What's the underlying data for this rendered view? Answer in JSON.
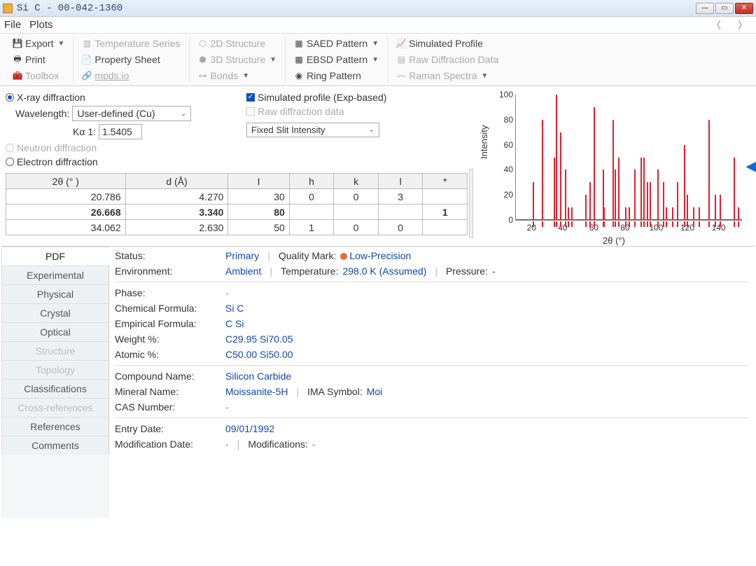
{
  "window": {
    "title": "Si C - 00-042-1360"
  },
  "menu": {
    "file": "File",
    "plots": "Plots"
  },
  "toolbar": {
    "export": "Export",
    "print": "Print",
    "toolbox": "Toolbox",
    "temp_series": "Temperature Series",
    "prop_sheet": "Property Sheet",
    "mpds": "mpds.io",
    "struct2d": "2D Structure",
    "struct3d": "3D Structure",
    "bonds": "Bonds",
    "saed": "SAED Pattern",
    "ebsd": "EBSD Pattern",
    "ring": "Ring Pattern",
    "sim_profile": "Simulated Profile",
    "raw_diff": "Raw Diffraction Data",
    "raman": "Raman Spectra"
  },
  "opts": {
    "xray": "X-ray diffraction",
    "neutron": "Neutron diffraction",
    "electron": "Electron diffraction",
    "wavelength_lbl": "Wavelength:",
    "wavelength_sel": "User-defined (Cu)",
    "ka1_lbl": "Kα 1:",
    "ka1_val": "1.5405",
    "sim_profile": "Simulated profile (Exp-based)",
    "raw_data": "Raw diffraction data",
    "intensity_mode": "Fixed Slit Intensity"
  },
  "table": {
    "headers": [
      "2θ (° )",
      "d (Å)",
      "I",
      "h",
      "k",
      "l",
      "*"
    ],
    "rows": [
      {
        "tt": "20.786",
        "d": "4.270",
        "I": "30",
        "h": "0",
        "k": "0",
        "l": "3",
        "s": ""
      },
      {
        "tt": "26.668",
        "d": "3.340",
        "I": "80",
        "h": "",
        "k": "",
        "l": "",
        "s": "1",
        "hl": true
      },
      {
        "tt": "34.062",
        "d": "2.630",
        "I": "50",
        "h": "1",
        "k": "0",
        "l": "0",
        "s": ""
      }
    ]
  },
  "chart": {
    "ylabel": "Intensity",
    "xlabel": "2θ (°)",
    "ylim": [
      0,
      100
    ],
    "ytick_step": 20,
    "xlim": [
      10,
      155
    ],
    "xticks": [
      20,
      40,
      60,
      80,
      100,
      120,
      140
    ],
    "bar_color": "#e02030",
    "axis_color": "#888888",
    "peaks": [
      [
        20.8,
        30
      ],
      [
        26.7,
        80
      ],
      [
        34.1,
        50
      ],
      [
        35.6,
        100
      ],
      [
        38.1,
        70
      ],
      [
        41.4,
        40
      ],
      [
        43.3,
        10
      ],
      [
        45.3,
        10
      ],
      [
        54.6,
        20
      ],
      [
        57.2,
        30
      ],
      [
        60.0,
        90
      ],
      [
        65.6,
        40
      ],
      [
        66.2,
        10
      ],
      [
        71.8,
        80
      ],
      [
        73.4,
        40
      ],
      [
        75.5,
        50
      ],
      [
        79.9,
        10
      ],
      [
        82.1,
        10
      ],
      [
        85.9,
        40
      ],
      [
        89.9,
        50
      ],
      [
        91.7,
        50
      ],
      [
        94.0,
        30
      ],
      [
        95.7,
        30
      ],
      [
        100.7,
        40
      ],
      [
        104.3,
        30
      ],
      [
        106.1,
        10
      ],
      [
        110.0,
        10
      ],
      [
        113.4,
        30
      ],
      [
        117.9,
        60
      ],
      [
        119.7,
        20
      ],
      [
        123.8,
        10
      ],
      [
        127.3,
        10
      ],
      [
        133.5,
        80
      ],
      [
        137.4,
        20
      ],
      [
        140.8,
        20
      ],
      [
        149.7,
        50
      ],
      [
        152.1,
        10
      ]
    ]
  },
  "tabs": {
    "pdf": "PDF",
    "exp": "Experimental",
    "phys": "Physical",
    "cryst": "Crystal",
    "opt": "Optical",
    "struct": "Structure",
    "topo": "Topology",
    "class": "Classifications",
    "xref": "Cross-references",
    "refs": "References",
    "comm": "Comments"
  },
  "detail": {
    "status_lbl": "Status:",
    "status": "Primary",
    "qmark_lbl": "Quality Mark:",
    "qmark": "Low-Precision",
    "env_lbl": "Environment:",
    "env": "Ambient",
    "temp_lbl": "Temperature:",
    "temp": "298.0 K (Assumed)",
    "press_lbl": "Pressure:",
    "press": "-",
    "phase_lbl": "Phase:",
    "phase": "-",
    "chem_lbl": "Chemical Formula:",
    "chem": "Si C",
    "emp_lbl": "Empirical Formula:",
    "emp": "C Si",
    "wt_lbl": "Weight %:",
    "wt": "C29.95 Si70.05",
    "at_lbl": "Atomic %:",
    "at": "C50.00 Si50.00",
    "cname_lbl": "Compound Name:",
    "cname": "Silicon Carbide",
    "mname_lbl": "Mineral Name:",
    "mname": "Moissanite-5H",
    "ima_lbl": "IMA Symbol:",
    "ima": "Moi",
    "cas_lbl": "CAS Number:",
    "cas": "-",
    "edate_lbl": "Entry Date:",
    "edate": "09/01/1992",
    "mdate_lbl": "Modification Date:",
    "mdate": "-",
    "mods_lbl": "Modifications:",
    "mods": "-"
  }
}
